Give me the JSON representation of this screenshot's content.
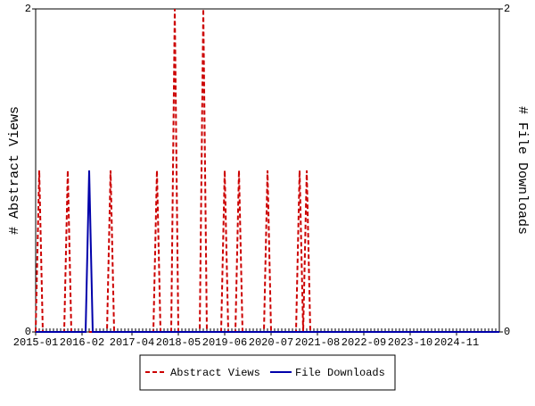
{
  "chart_data": {
    "type": "line",
    "categories": [
      "2015-01",
      null,
      null,
      null,
      null,
      null,
      null,
      null,
      null,
      null,
      null,
      null,
      null,
      "2016-02",
      null,
      null,
      null,
      null,
      null,
      null,
      null,
      null,
      null,
      null,
      null,
      null,
      null,
      "2017-04",
      null,
      null,
      null,
      null,
      null,
      null,
      null,
      null,
      null,
      null,
      null,
      null,
      "2018-05",
      null,
      null,
      null,
      null,
      null,
      null,
      null,
      null,
      null,
      null,
      null,
      null,
      "2019-06",
      null,
      null,
      null,
      null,
      null,
      null,
      null,
      null,
      null,
      null,
      null,
      null,
      "2020-07",
      null,
      null,
      null,
      null,
      null,
      null,
      null,
      null,
      null,
      null,
      null,
      null,
      "2021-08",
      null,
      null,
      null,
      null,
      null,
      null,
      null,
      null,
      null,
      null,
      null,
      null,
      "2022-09",
      null,
      null,
      null,
      null,
      null,
      null,
      null,
      null,
      null,
      null,
      null,
      null,
      "2023-10",
      null,
      null,
      null,
      null,
      null,
      null,
      null,
      null,
      null,
      null,
      null,
      null,
      "2024-11",
      null,
      null,
      null,
      null,
      null,
      null,
      null,
      null,
      null,
      null,
      null,
      null
    ],
    "series": [
      {
        "name": "Abstract Views",
        "color": "#cc0000",
        "dashed": true,
        "values": [
          0,
          1,
          0,
          0,
          0,
          0,
          0,
          0,
          0,
          1,
          0,
          0,
          0,
          0,
          0,
          0,
          0,
          0,
          0,
          0,
          0,
          1,
          0,
          0,
          0,
          0,
          0,
          0,
          0,
          0,
          0,
          0,
          0,
          0,
          1,
          0,
          0,
          0,
          0,
          2,
          0,
          0,
          0,
          0,
          0,
          0,
          0,
          2,
          0,
          0,
          0,
          0,
          0,
          1,
          0,
          0,
          0,
          1,
          0,
          0,
          0,
          0,
          0,
          0,
          0,
          1,
          0,
          0,
          0,
          0,
          0,
          0,
          0,
          0,
          1,
          0,
          1,
          0,
          0,
          0,
          0,
          0,
          0,
          0,
          0,
          0,
          0,
          0,
          0,
          0,
          0,
          0,
          0,
          0,
          0,
          0,
          0,
          0,
          0,
          0,
          0,
          0,
          0,
          0,
          0,
          0,
          0,
          0,
          0,
          0,
          0,
          0,
          0,
          0,
          0,
          0,
          0,
          0,
          0,
          0,
          0,
          0,
          0,
          0,
          0,
          0,
          0,
          0,
          0,
          0,
          0
        ]
      },
      {
        "name": "File Downloads",
        "color": "#0000aa",
        "axis": "y2",
        "dashed": false,
        "values": [
          0,
          0,
          0,
          0,
          0,
          0,
          0,
          0,
          0,
          0,
          0,
          0,
          0,
          0,
          0,
          1,
          0,
          0,
          0,
          0,
          0,
          0,
          0,
          0,
          0,
          0,
          0,
          0,
          0,
          0,
          0,
          0,
          0,
          0,
          0,
          0,
          0,
          0,
          0,
          0,
          0,
          0,
          0,
          0,
          0,
          0,
          0,
          0,
          0,
          0,
          0,
          0,
          0,
          0,
          0,
          0,
          0,
          0,
          0,
          0,
          0,
          0,
          0,
          0,
          0,
          0,
          0,
          0,
          0,
          0,
          0,
          0,
          0,
          0,
          0,
          0,
          0,
          0,
          0,
          0,
          0,
          0,
          0,
          0,
          0,
          0,
          0,
          0,
          0,
          0,
          0,
          0,
          0,
          0,
          0,
          0,
          0,
          0,
          0,
          0,
          0,
          0,
          0,
          0,
          0,
          0,
          0,
          0,
          0,
          0,
          0,
          0,
          0,
          0,
          0,
          0,
          0,
          0,
          0,
          0,
          0,
          0,
          0,
          0,
          0,
          0,
          0,
          0,
          0,
          0,
          0
        ]
      }
    ],
    "y_label": "# Abstract Views",
    "y2_label": "# File Downloads",
    "ylim": [
      0,
      2
    ],
    "yticks": [
      0,
      2
    ],
    "y2lim": [
      0,
      2
    ],
    "y2ticks": [
      0,
      2
    ],
    "legend": "bottom"
  }
}
